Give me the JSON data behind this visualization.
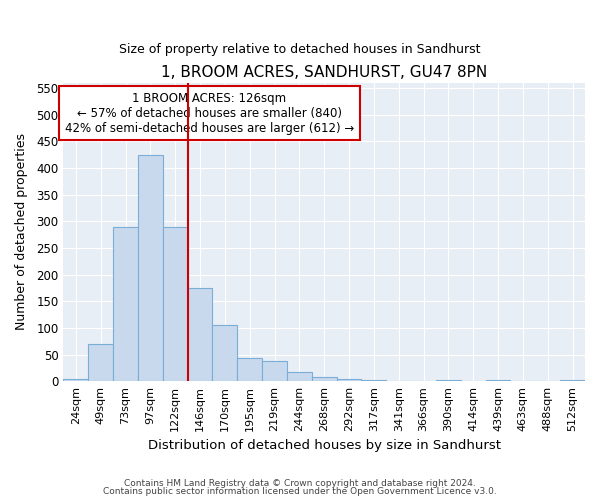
{
  "title": "1, BROOM ACRES, SANDHURST, GU47 8PN",
  "subtitle": "Size of property relative to detached houses in Sandhurst",
  "xlabel": "Distribution of detached houses by size in Sandhurst",
  "ylabel": "Number of detached properties",
  "categories": [
    "24sqm",
    "49sqm",
    "73sqm",
    "97sqm",
    "122sqm",
    "146sqm",
    "170sqm",
    "195sqm",
    "219sqm",
    "244sqm",
    "268sqm",
    "292sqm",
    "317sqm",
    "341sqm",
    "366sqm",
    "390sqm",
    "414sqm",
    "439sqm",
    "463sqm",
    "488sqm",
    "512sqm"
  ],
  "values": [
    5,
    70,
    290,
    425,
    290,
    175,
    105,
    43,
    38,
    17,
    8,
    5,
    3,
    1,
    1,
    2,
    0,
    2,
    0,
    0,
    2
  ],
  "bar_color": "#c8d9ee",
  "bar_edge_color": "#7aaed6",
  "plot_bg_color": "#e8eef5",
  "fig_bg_color": "#ffffff",
  "grid_color": "#ffffff",
  "vline_color": "#cc0000",
  "annotation_text": "1 BROOM ACRES: 126sqm\n← 57% of detached houses are smaller (840)\n42% of semi-detached houses are larger (612) →",
  "annotation_box_color": "#cc0000",
  "ylim": [
    0,
    560
  ],
  "yticks": [
    0,
    50,
    100,
    150,
    200,
    250,
    300,
    350,
    400,
    450,
    500,
    550
  ],
  "footer_line1": "Contains HM Land Registry data © Crown copyright and database right 2024.",
  "footer_line2": "Contains public sector information licensed under the Open Government Licence v3.0."
}
